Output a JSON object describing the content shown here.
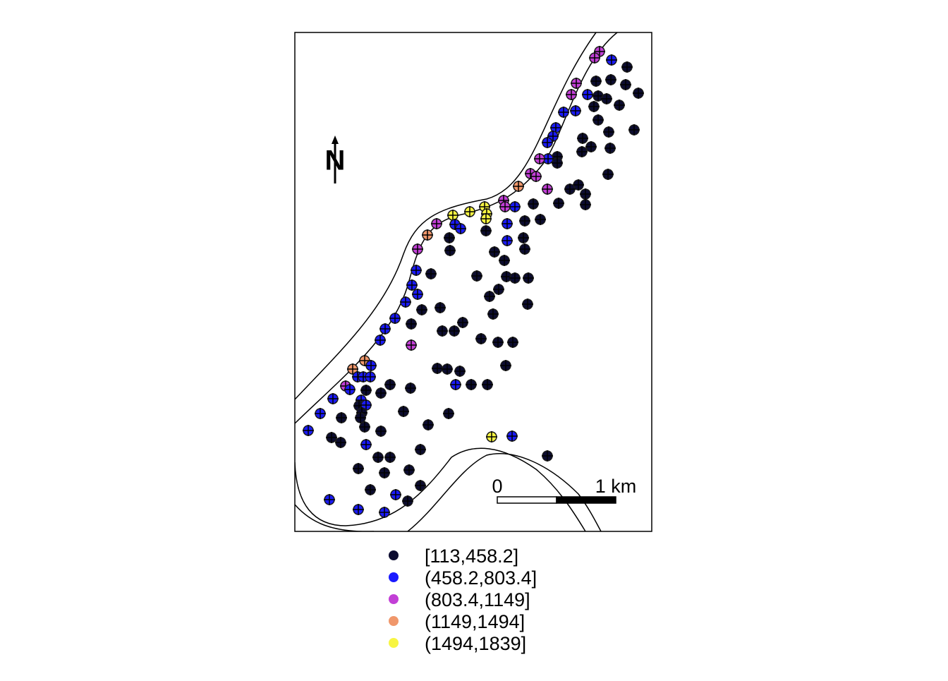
{
  "map": {
    "north_label": "N",
    "scale_bar": {
      "start_label": "0",
      "end_label": "1 km"
    },
    "xlim": [
      0,
      506
    ],
    "ylim": [
      0,
      707
    ],
    "legend": [
      {
        "label": "[113,458.2]",
        "color": "#0c0c30"
      },
      {
        "label": "(458.2,803.4]",
        "color": "#1a1aff"
      },
      {
        "label": "(803.4,1149]",
        "color": "#c23fd6"
      },
      {
        "label": "(1149,1494]",
        "color": "#f0976b"
      },
      {
        "label": "(1494,1839]",
        "color": "#f7f542"
      }
    ],
    "points": [
      [
        432,
        680,
        2
      ],
      [
        425,
        671,
        2
      ],
      [
        449,
        668,
        1
      ],
      [
        471,
        658,
        0
      ],
      [
        427,
        638,
        0
      ],
      [
        448,
        640,
        0
      ],
      [
        399,
        635,
        2
      ],
      [
        469,
        633,
        0
      ],
      [
        487,
        621,
        0
      ],
      [
        392,
        619,
        2
      ],
      [
        415,
        619,
        1
      ],
      [
        430,
        617,
        0
      ],
      [
        442,
        613,
        0
      ],
      [
        460,
        604,
        0
      ],
      [
        424,
        602,
        0
      ],
      [
        398,
        596,
        1
      ],
      [
        381,
        594,
        1
      ],
      [
        430,
        583,
        0
      ],
      [
        445,
        566,
        0
      ],
      [
        481,
        569,
        0
      ],
      [
        370,
        572,
        1
      ],
      [
        366,
        560,
        1
      ],
      [
        408,
        557,
        0
      ],
      [
        358,
        551,
        1
      ],
      [
        420,
        545,
        0
      ],
      [
        447,
        543,
        0
      ],
      [
        407,
        538,
        0
      ],
      [
        372,
        531,
        0
      ],
      [
        359,
        528,
        1
      ],
      [
        347,
        528,
        2
      ],
      [
        372,
        522,
        0
      ],
      [
        444,
        506,
        0
      ],
      [
        334,
        507,
        2
      ],
      [
        342,
        503,
        2
      ],
      [
        317,
        489,
        3
      ],
      [
        402,
        491,
        0
      ],
      [
        390,
        485,
        0
      ],
      [
        358,
        485,
        2
      ],
      [
        412,
        478,
        0
      ],
      [
        296,
        469,
        2
      ],
      [
        298,
        460,
        2
      ],
      [
        312,
        460,
        1
      ],
      [
        338,
        464,
        0
      ],
      [
        374,
        465,
        0
      ],
      [
        269,
        460,
        4
      ],
      [
        272,
        450,
        4
      ],
      [
        248,
        453,
        4
      ],
      [
        224,
        448,
        4
      ],
      [
        412,
        463,
        0
      ],
      [
        271,
        443,
        4
      ],
      [
        201,
        436,
        2
      ],
      [
        227,
        435,
        1
      ],
      [
        235,
        429,
        1
      ],
      [
        326,
        440,
        0
      ],
      [
        348,
        442,
        0
      ],
      [
        301,
        436,
        1
      ],
      [
        271,
        426,
        0
      ],
      [
        188,
        420,
        3
      ],
      [
        219,
        416,
        0
      ],
      [
        324,
        416,
        0
      ],
      [
        301,
        412,
        1
      ],
      [
        174,
        400,
        2
      ],
      [
        220,
        398,
        0
      ],
      [
        283,
        396,
        0
      ],
      [
        326,
        400,
        0
      ],
      [
        297,
        384,
        0
      ],
      [
        172,
        370,
        1
      ],
      [
        193,
        365,
        0
      ],
      [
        258,
        362,
        0
      ],
      [
        300,
        361,
        0
      ],
      [
        312,
        359,
        0
      ],
      [
        331,
        359,
        0
      ],
      [
        166,
        349,
        1
      ],
      [
        174,
        336,
        1
      ],
      [
        289,
        343,
        0
      ],
      [
        276,
        333,
        0
      ],
      [
        157,
        325,
        1
      ],
      [
        180,
        314,
        0
      ],
      [
        206,
        317,
        0
      ],
      [
        330,
        322,
        0
      ],
      [
        142,
        302,
        1
      ],
      [
        281,
        308,
        0
      ],
      [
        165,
        294,
        0
      ],
      [
        238,
        296,
        0
      ],
      [
        128,
        287,
        1
      ],
      [
        209,
        284,
        0
      ],
      [
        226,
        284,
        0
      ],
      [
        121,
        271,
        1
      ],
      [
        264,
        273,
        0
      ],
      [
        288,
        268,
        0
      ],
      [
        309,
        268,
        0
      ],
      [
        165,
        264,
        2
      ],
      [
        99,
        242,
        3
      ],
      [
        82,
        230,
        3
      ],
      [
        108,
        235,
        1
      ],
      [
        202,
        231,
        0
      ],
      [
        216,
        230,
        0
      ],
      [
        234,
        227,
        0
      ],
      [
        299,
        235,
        0
      ],
      [
        89,
        219,
        1
      ],
      [
        97,
        219,
        1
      ],
      [
        107,
        219,
        1
      ],
      [
        72,
        206,
        2
      ],
      [
        78,
        201,
        1
      ],
      [
        135,
        208,
        0
      ],
      [
        164,
        203,
        0
      ],
      [
        228,
        208,
        1
      ],
      [
        250,
        208,
        0
      ],
      [
        273,
        208,
        0
      ],
      [
        101,
        200,
        0
      ],
      [
        54,
        188,
        1
      ],
      [
        94,
        186,
        1
      ],
      [
        91,
        178,
        0
      ],
      [
        101,
        179,
        1
      ],
      [
        122,
        196,
        0
      ],
      [
        36,
        167,
        1
      ],
      [
        66,
        161,
        0
      ],
      [
        95,
        168,
        0
      ],
      [
        93,
        161,
        0
      ],
      [
        154,
        170,
        0
      ],
      [
        218,
        167,
        0
      ],
      [
        19,
        143,
        1
      ],
      [
        99,
        148,
        0
      ],
      [
        122,
        142,
        0
      ],
      [
        189,
        151,
        0
      ],
      [
        52,
        133,
        0
      ],
      [
        65,
        126,
        0
      ],
      [
        101,
        123,
        1
      ],
      [
        279,
        134,
        4
      ],
      [
        308,
        135,
        1
      ],
      [
        178,
        116,
        0
      ],
      [
        118,
        105,
        0
      ],
      [
        135,
        105,
        0
      ],
      [
        358,
        107,
        0
      ],
      [
        90,
        89,
        0
      ],
      [
        162,
        87,
        0
      ],
      [
        127,
        83,
        0
      ],
      [
        178,
        65,
        0
      ],
      [
        107,
        59,
        0
      ],
      [
        143,
        52,
        1
      ],
      [
        160,
        43,
        0
      ],
      [
        49,
        45,
        1
      ],
      [
        90,
        31,
        1
      ],
      [
        127,
        27,
        1
      ]
    ]
  }
}
